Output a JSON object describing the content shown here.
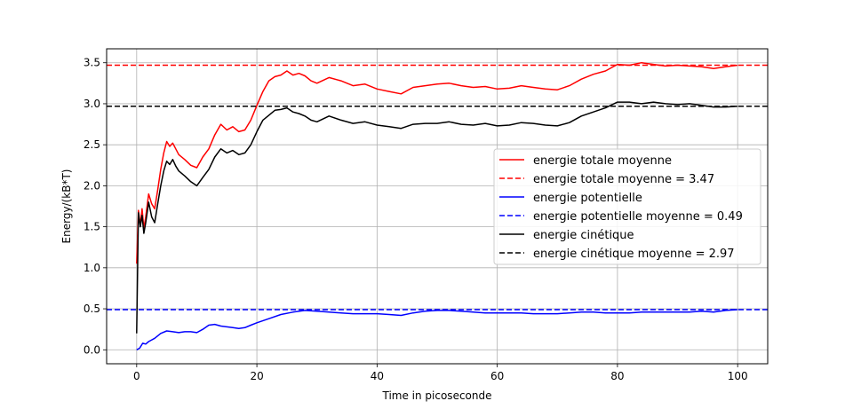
{
  "chart_data": {
    "type": "line",
    "title": "",
    "xlabel": "Time in picoseconde",
    "ylabel": "Energy/(kB*T)",
    "xlim": [
      -5,
      105
    ],
    "ylim": [
      -0.17,
      3.67
    ],
    "xticks": [
      0,
      20,
      40,
      60,
      80,
      100
    ],
    "xtick_labels": [
      "0",
      "20",
      "40",
      "60",
      "80",
      "100"
    ],
    "yticks": [
      0.0,
      0.5,
      1.0,
      1.5,
      2.0,
      2.5,
      3.0,
      3.5
    ],
    "ytick_labels": [
      "0.0",
      "0.5",
      "1.0",
      "1.5",
      "2.0",
      "2.5",
      "3.0",
      "3.5"
    ],
    "grid": true,
    "legend_position": "center-right",
    "series": [
      {
        "name": "energie totale moyenne",
        "color": "#ff0000",
        "style": "solid",
        "x": [
          0,
          0.3,
          0.6,
          0.9,
          1.2,
          1.5,
          2,
          2.5,
          3,
          3.5,
          4,
          4.5,
          5,
          5.5,
          6,
          6.5,
          7,
          8,
          9,
          10,
          11,
          12,
          13,
          14,
          15,
          16,
          17,
          18,
          19,
          20,
          21,
          22,
          23,
          24,
          25,
          26,
          27,
          28,
          29,
          30,
          32,
          34,
          36,
          38,
          40,
          42,
          44,
          46,
          48,
          50,
          52,
          54,
          56,
          58,
          60,
          62,
          64,
          66,
          68,
          70,
          72,
          74,
          76,
          78,
          80,
          82,
          84,
          86,
          88,
          90,
          92,
          94,
          96,
          98,
          100
        ],
        "y": [
          1.05,
          1.7,
          1.52,
          1.72,
          1.48,
          1.62,
          1.9,
          1.78,
          1.72,
          1.95,
          2.2,
          2.4,
          2.54,
          2.48,
          2.52,
          2.45,
          2.38,
          2.32,
          2.25,
          2.22,
          2.35,
          2.45,
          2.62,
          2.75,
          2.68,
          2.72,
          2.66,
          2.68,
          2.8,
          2.98,
          3.15,
          3.28,
          3.33,
          3.35,
          3.4,
          3.35,
          3.37,
          3.34,
          3.28,
          3.25,
          3.32,
          3.28,
          3.22,
          3.24,
          3.18,
          3.15,
          3.12,
          3.2,
          3.22,
          3.24,
          3.25,
          3.22,
          3.2,
          3.21,
          3.18,
          3.19,
          3.22,
          3.2,
          3.18,
          3.17,
          3.22,
          3.3,
          3.36,
          3.4,
          3.48,
          3.47,
          3.5,
          3.48,
          3.46,
          3.47,
          3.46,
          3.45,
          3.43,
          3.45,
          3.47
        ]
      },
      {
        "name": "energie totale moyenne = 3.47",
        "color": "#ff0000",
        "style": "dashed",
        "x": [
          -5,
          105
        ],
        "y": [
          3.47,
          3.47
        ]
      },
      {
        "name": "energie potentielle",
        "color": "#0000ff",
        "style": "solid",
        "x": [
          0,
          0.5,
          1,
          1.5,
          2,
          3,
          4,
          5,
          6,
          7,
          8,
          9,
          10,
          11,
          12,
          13,
          14,
          15,
          16,
          17,
          18,
          19,
          20,
          22,
          24,
          26,
          28,
          30,
          32,
          34,
          36,
          38,
          40,
          42,
          44,
          46,
          48,
          50,
          52,
          54,
          56,
          58,
          60,
          62,
          64,
          66,
          68,
          70,
          72,
          74,
          76,
          78,
          80,
          82,
          84,
          86,
          88,
          90,
          92,
          94,
          96,
          98,
          100
        ],
        "y": [
          0.0,
          0.02,
          0.08,
          0.07,
          0.1,
          0.14,
          0.2,
          0.23,
          0.22,
          0.21,
          0.22,
          0.22,
          0.21,
          0.25,
          0.3,
          0.31,
          0.29,
          0.28,
          0.27,
          0.26,
          0.27,
          0.3,
          0.33,
          0.38,
          0.43,
          0.46,
          0.48,
          0.47,
          0.46,
          0.45,
          0.44,
          0.44,
          0.44,
          0.43,
          0.42,
          0.45,
          0.47,
          0.48,
          0.48,
          0.47,
          0.46,
          0.45,
          0.45,
          0.45,
          0.45,
          0.44,
          0.44,
          0.44,
          0.45,
          0.46,
          0.46,
          0.45,
          0.45,
          0.45,
          0.46,
          0.46,
          0.46,
          0.46,
          0.46,
          0.47,
          0.46,
          0.48,
          0.49
        ]
      },
      {
        "name": "energie potentielle moyenne = 0.49",
        "color": "#0000ff",
        "style": "dashed",
        "x": [
          -5,
          105
        ],
        "y": [
          0.49,
          0.49
        ]
      },
      {
        "name": "energie cinétique",
        "color": "#000000",
        "style": "solid",
        "x": [
          0,
          0.3,
          0.6,
          0.9,
          1.2,
          1.5,
          2,
          2.5,
          3,
          3.5,
          4,
          4.5,
          5,
          5.5,
          6,
          6.5,
          7,
          8,
          9,
          10,
          11,
          12,
          13,
          14,
          15,
          16,
          17,
          18,
          19,
          20,
          21,
          22,
          23,
          24,
          25,
          26,
          27,
          28,
          29,
          30,
          32,
          34,
          36,
          38,
          40,
          42,
          44,
          46,
          48,
          50,
          52,
          54,
          56,
          58,
          60,
          62,
          64,
          66,
          68,
          70,
          72,
          74,
          76,
          78,
          80,
          82,
          84,
          86,
          88,
          90,
          92,
          94,
          96,
          98,
          100
        ],
        "y": [
          0.2,
          1.67,
          1.5,
          1.64,
          1.42,
          1.55,
          1.8,
          1.62,
          1.55,
          1.78,
          2.0,
          2.18,
          2.3,
          2.26,
          2.32,
          2.24,
          2.18,
          2.12,
          2.05,
          2.0,
          2.1,
          2.2,
          2.35,
          2.45,
          2.4,
          2.43,
          2.38,
          2.4,
          2.5,
          2.66,
          2.8,
          2.86,
          2.92,
          2.93,
          2.95,
          2.9,
          2.88,
          2.85,
          2.8,
          2.78,
          2.85,
          2.8,
          2.76,
          2.78,
          2.74,
          2.72,
          2.7,
          2.75,
          2.76,
          2.76,
          2.78,
          2.75,
          2.74,
          2.76,
          2.73,
          2.74,
          2.77,
          2.76,
          2.74,
          2.73,
          2.77,
          2.85,
          2.9,
          2.95,
          3.02,
          3.02,
          3.0,
          3.02,
          3.0,
          2.99,
          3.0,
          2.98,
          2.96,
          2.96,
          2.97
        ]
      },
      {
        "name": "energie cinétique moyenne = 2.97",
        "color": "#000000",
        "style": "dashed",
        "x": [
          -5,
          105
        ],
        "y": [
          2.97,
          2.97
        ]
      }
    ]
  }
}
